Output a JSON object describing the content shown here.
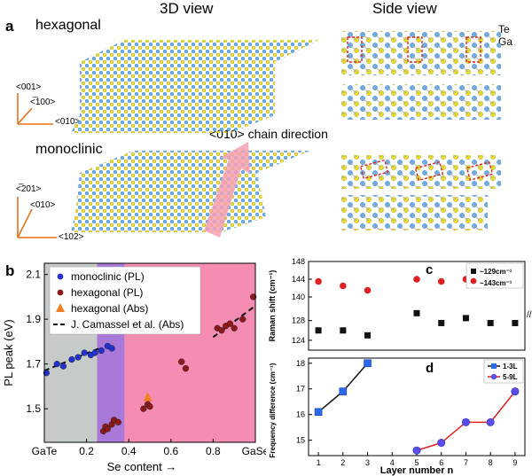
{
  "panel_a": {
    "label": "a",
    "header_3d": "3D view",
    "header_side": "Side view",
    "hexagonal": "hexagonal",
    "monoclinic": "monoclinic",
    "chain_direction": "<010> chain direction",
    "te": "Te",
    "ga": "Ga",
    "axes_hex": {
      "up": "<001>",
      "diag": "<̅100>",
      "right": "<010>"
    },
    "axes_mono": {
      "up": "<̅201>",
      "diag": "<010>",
      "right": "<102>"
    }
  },
  "panel_b": {
    "label": "b",
    "ylabel": "PL peak (eV)",
    "xlabel": "Se content →",
    "colors": {
      "gray": "#c6cbc9",
      "purple": "#a879d8",
      "pink": "#f48cb4",
      "blue": "#2233cc",
      "darkred": "#8b1a1a",
      "orange": "#f08020"
    },
    "legend": [
      "monoclinic (PL)",
      "hexagonal (PL)",
      "hexagonal (Abs)",
      "J. Camassel et al. (Abs)"
    ],
    "chart_data": {
      "type": "scatter",
      "xlim": [
        0,
        1
      ],
      "ylim": [
        1.35,
        2.15
      ],
      "xticks": [
        "GaTe",
        "0.2",
        "0.4",
        "0.6",
        "0.8",
        "GaSe"
      ],
      "xtick_values": [
        0,
        0.2,
        0.4,
        0.6,
        0.8,
        1.0
      ],
      "yticks": [
        1.5,
        1.7,
        1.9,
        2.1
      ],
      "regions": [
        {
          "from": 0,
          "to": 0.25,
          "color": "gray"
        },
        {
          "from": 0.25,
          "to": 0.38,
          "color": "purple"
        },
        {
          "from": 0.38,
          "to": 1.0,
          "color": "pink"
        }
      ],
      "series": [
        {
          "name": "monoclinic (PL)",
          "x": [
            0.01,
            0.06,
            0.09,
            0.13,
            0.16,
            0.19,
            0.22,
            0.24,
            0.27,
            0.3,
            0.32
          ],
          "y": [
            1.66,
            1.7,
            1.69,
            1.72,
            1.73,
            1.75,
            1.74,
            1.75,
            1.76,
            1.78,
            1.77
          ]
        },
        {
          "name": "hexagonal (PL)",
          "x": [
            0.28,
            0.29,
            0.3,
            0.32,
            0.33,
            0.35,
            0.47,
            0.49,
            0.5,
            0.65,
            0.67,
            0.82,
            0.84,
            0.86,
            0.88,
            0.9,
            0.94,
            0.99
          ],
          "y": [
            1.4,
            1.42,
            1.41,
            1.43,
            1.45,
            1.44,
            1.5,
            1.52,
            1.51,
            1.71,
            1.68,
            1.86,
            1.85,
            1.87,
            1.88,
            1.86,
            1.9,
            2.0
          ]
        },
        {
          "name": "hexagonal (Abs)",
          "x": [
            0.49
          ],
          "y": [
            1.55
          ]
        }
      ],
      "fit_line": {
        "name": "J. Camassel et al. (Abs)",
        "segments": [
          [
            [
              0,
              1.67
            ],
            [
              0.26,
              1.77
            ]
          ],
          [
            [
              0.8,
              1.82
            ],
            [
              1.0,
              1.96
            ]
          ]
        ]
      }
    }
  },
  "panel_c": {
    "label": "c",
    "ylabel": "Raman shift (cm⁻¹)",
    "legend": [
      "~129cm⁻¹",
      "~143cm⁻¹"
    ],
    "chart_data": {
      "type": "scatter",
      "x": [
        1,
        2,
        3,
        5,
        6,
        7,
        8,
        9
      ],
      "yticks": [
        124,
        128,
        140,
        144,
        148
      ],
      "series": [
        {
          "name": "~129cm⁻¹",
          "values": [
            126,
            126,
            125,
            129.5,
            127.5,
            128.5,
            127.5,
            127.5
          ]
        },
        {
          "name": "~143cm⁻¹",
          "values": [
            143.5,
            142.5,
            141.5,
            144,
            143.5,
            144,
            143,
            143
          ]
        }
      ]
    }
  },
  "panel_d": {
    "label": "d",
    "ylabel": "Frequency difference (cm⁻¹)",
    "xlabel": "Layer number n",
    "legend": [
      "1-3L",
      "5-9L"
    ],
    "chart_data": {
      "type": "line",
      "xticks": [
        1,
        2,
        3,
        4,
        5,
        6,
        7,
        8,
        9
      ],
      "yticks": [
        15,
        16,
        17,
        18
      ],
      "ylim": [
        14.4,
        18.2
      ],
      "series": [
        {
          "name": "1-3L",
          "x": [
            1,
            2,
            3
          ],
          "values": [
            16.1,
            16.9,
            18.0
          ]
        },
        {
          "name": "5-9L",
          "x": [
            5,
            6,
            7,
            8,
            9
          ],
          "values": [
            14.6,
            14.9,
            15.7,
            15.7,
            16.9
          ]
        }
      ]
    }
  }
}
